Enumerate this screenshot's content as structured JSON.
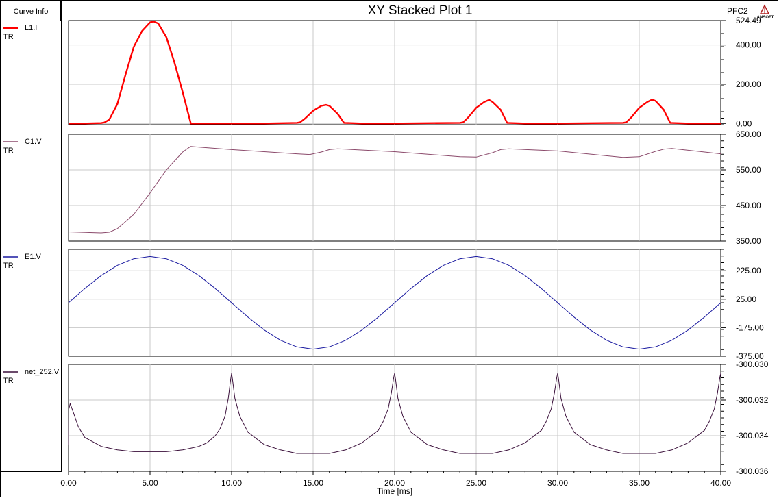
{
  "header": {
    "curve_info_label": "Curve Info",
    "title": "XY Stacked Plot 1",
    "design_name": "PFC2",
    "logo_text": "ANSOFT"
  },
  "chart_data": {
    "type": "line",
    "title": "XY Stacked Plot 1",
    "xlabel": "Time [ms]",
    "xlim": [
      0,
      40
    ],
    "xticks": [
      "0.00",
      "5.00",
      "10.00",
      "15.00",
      "20.00",
      "25.00",
      "30.00",
      "35.00",
      "40.00"
    ],
    "grid": true,
    "legend_position": "left",
    "panels": [
      {
        "name": "L1.I",
        "sub": "TR",
        "color": "#ff0000",
        "ylim": [
          -6,
          524.49
        ],
        "yticks": [
          {
            "v": 524.49,
            "t": "524.49"
          },
          {
            "v": 400,
            "t": "400.00"
          },
          {
            "v": 200,
            "t": "200.00"
          },
          {
            "v": 0,
            "t": "0.00"
          }
        ],
        "x": [
          0,
          1,
          2,
          2.2,
          2.5,
          3,
          3.5,
          4,
          4.5,
          5,
          5.2,
          5.5,
          6,
          6.5,
          7,
          7.5,
          8,
          10,
          12,
          14,
          14.2,
          14.5,
          15,
          15.5,
          15.8,
          16,
          16.5,
          16.9,
          18,
          20,
          24,
          24.2,
          24.5,
          25,
          25.5,
          25.8,
          26,
          26.5,
          26.9,
          28,
          30,
          34,
          34.2,
          34.5,
          35,
          35.5,
          35.8,
          36,
          36.5,
          36.9,
          38,
          40
        ],
        "values": [
          0,
          0,
          2,
          5,
          20,
          100,
          250,
          390,
          470,
          515,
          520,
          510,
          440,
          310,
          160,
          0,
          0,
          0,
          0,
          3,
          6,
          25,
          65,
          90,
          95,
          90,
          50,
          3,
          0,
          0,
          3,
          6,
          30,
          80,
          110,
          120,
          110,
          70,
          3,
          0,
          0,
          3,
          6,
          30,
          80,
          110,
          122,
          115,
          70,
          3,
          0,
          0
        ]
      },
      {
        "name": "C1.V",
        "sub": "TR",
        "color": "#8b4a6b",
        "ylim": [
          350,
          650
        ],
        "yticks": [
          {
            "v": 650,
            "t": "650.00"
          },
          {
            "v": 550,
            "t": "550.00"
          },
          {
            "v": 450,
            "t": "450.00"
          },
          {
            "v": 350,
            "t": "350.00"
          }
        ],
        "x": [
          0,
          2,
          2.5,
          3,
          4,
          5,
          6,
          7,
          7.3,
          7.5,
          8,
          10,
          12,
          14,
          14.8,
          15.5,
          16,
          16.5,
          17,
          20,
          24,
          25,
          26,
          26.5,
          27,
          30,
          34,
          35,
          36,
          36.5,
          37,
          40
        ],
        "values": [
          376,
          373,
          375,
          385,
          425,
          485,
          550,
          600,
          610,
          616,
          614,
          607,
          601,
          595,
          593,
          600,
          607,
          609,
          608,
          601,
          587,
          586,
          598,
          607,
          609,
          603,
          585,
          587,
          602,
          608,
          610,
          595
        ]
      },
      {
        "name": "E1.V",
        "sub": "TR",
        "color": "#1a1aa0",
        "ylim": [
          -375,
          375
        ],
        "yticks": [
          {
            "v": 225,
            "t": "225.00"
          },
          {
            "v": 25,
            "t": "25.00"
          },
          {
            "v": -175,
            "t": "-175.00"
          },
          {
            "v": -375,
            "t": "-375.00"
          }
        ],
        "amplitude": 325,
        "frequency_hz": 50,
        "x": [
          0,
          1,
          2,
          3,
          4,
          5,
          6,
          7,
          8,
          9,
          10,
          11,
          12,
          13,
          14,
          15,
          16,
          17,
          18,
          19,
          20,
          21,
          22,
          23,
          24,
          25,
          26,
          27,
          28,
          29,
          30,
          31,
          32,
          33,
          34,
          35,
          36,
          37,
          38,
          39,
          40
        ],
        "values": [
          0,
          100,
          191,
          263,
          309,
          325,
          309,
          263,
          191,
          100,
          0,
          -100,
          -191,
          -263,
          -309,
          -325,
          -309,
          -263,
          -191,
          -100,
          0,
          100,
          191,
          263,
          309,
          325,
          309,
          263,
          191,
          100,
          0,
          -100,
          -191,
          -263,
          -309,
          -325,
          -309,
          -263,
          -191,
          -100,
          0
        ]
      },
      {
        "name": "net_252.V",
        "sub": "TR",
        "color": "#3a0f3a",
        "ylim": [
          -300.036,
          -300.03
        ],
        "yticks": [
          {
            "v": -300.03,
            "t": "-300.030"
          },
          {
            "v": -300.032,
            "t": "-300.032"
          },
          {
            "v": -300.034,
            "t": "-300.034"
          },
          {
            "v": -300.036,
            "t": "-300.036"
          }
        ],
        "x": [
          0,
          0.02,
          0.1,
          0.3,
          0.6,
          1,
          2,
          3,
          4,
          5,
          6,
          7,
          7.5,
          8,
          8.5,
          9,
          9.3,
          9.6,
          9.8,
          9.95,
          10,
          10.05,
          10.2,
          10.5,
          11,
          12,
          13,
          14,
          15,
          16,
          17,
          18,
          19,
          19.3,
          19.6,
          19.8,
          19.95,
          20,
          20.05,
          20.2,
          20.5,
          21,
          22,
          23,
          24,
          25,
          26,
          27,
          28,
          29,
          29.3,
          29.6,
          29.8,
          29.95,
          30,
          30.05,
          30.2,
          30.5,
          31,
          32,
          33,
          34,
          35,
          36,
          37,
          38,
          39,
          39.3,
          39.6,
          39.8,
          39.95,
          40
        ],
        "values": [
          -300.0345,
          -300.0325,
          -300.0322,
          -300.0327,
          -300.0335,
          -300.0341,
          -300.0346,
          -300.0348,
          -300.0349,
          -300.0349,
          -300.0349,
          -300.0348,
          -300.0347,
          -300.0346,
          -300.0344,
          -300.034,
          -300.0336,
          -300.0329,
          -300.0319,
          -300.0308,
          -300.0305,
          -300.0308,
          -300.0319,
          -300.0329,
          -300.0338,
          -300.0345,
          -300.0348,
          -300.035,
          -300.035,
          -300.035,
          -300.0348,
          -300.0344,
          -300.0337,
          -300.0332,
          -300.0325,
          -300.0316,
          -300.0307,
          -300.0305,
          -300.0308,
          -300.0319,
          -300.0329,
          -300.0338,
          -300.0345,
          -300.0348,
          -300.035,
          -300.035,
          -300.035,
          -300.0348,
          -300.0344,
          -300.0337,
          -300.0332,
          -300.0325,
          -300.0316,
          -300.0307,
          -300.0305,
          -300.0308,
          -300.0319,
          -300.0329,
          -300.0338,
          -300.0345,
          -300.0348,
          -300.035,
          -300.035,
          -300.035,
          -300.0348,
          -300.0344,
          -300.0337,
          -300.0332,
          -300.0325,
          -300.0316,
          -300.0307,
          -300.0305
        ]
      }
    ]
  }
}
